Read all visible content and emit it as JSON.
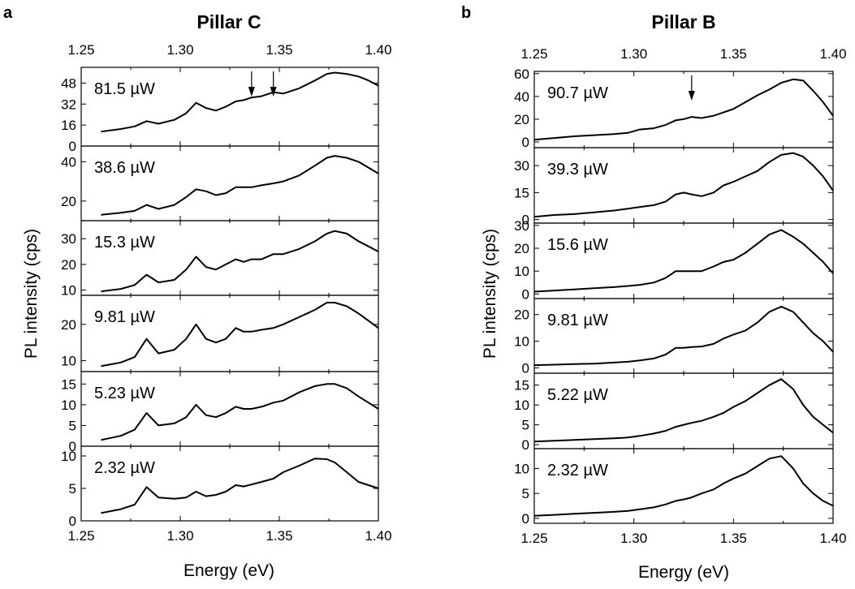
{
  "chart_data": [
    {
      "type": "line",
      "panel_label": "a",
      "title": "Pillar C",
      "xlabel": "Energy (eV)",
      "ylabel": "PL intensity (cps)",
      "xlim": [
        1.25,
        1.4
      ],
      "x_ticks": [
        "1.25",
        "1.30",
        "1.35",
        "1.40"
      ],
      "arrows_at_energy": [
        1.336,
        1.347
      ],
      "subplots": [
        {
          "label": "81.5 µW",
          "ylim": [
            0,
            60
          ],
          "y_ticks": [
            0,
            16,
            32,
            48
          ],
          "x": [
            1.26,
            1.27,
            1.277,
            1.283,
            1.289,
            1.297,
            1.303,
            1.308,
            1.313,
            1.318,
            1.323,
            1.328,
            1.332,
            1.336,
            1.341,
            1.347,
            1.352,
            1.36,
            1.368,
            1.374,
            1.378,
            1.384,
            1.39,
            1.395,
            1.4
          ],
          "y": [
            11,
            13,
            15,
            19,
            17,
            20,
            25,
            33,
            29,
            27,
            30,
            34,
            35,
            37,
            38,
            41,
            40,
            44,
            50,
            55,
            56,
            55,
            53,
            50,
            46
          ]
        },
        {
          "label": "38.6 µW",
          "ylim": [
            10,
            48
          ],
          "y_ticks": [
            20,
            40
          ],
          "x": [
            1.26,
            1.27,
            1.277,
            1.283,
            1.289,
            1.297,
            1.303,
            1.308,
            1.313,
            1.318,
            1.323,
            1.328,
            1.332,
            1.336,
            1.341,
            1.347,
            1.352,
            1.36,
            1.368,
            1.374,
            1.378,
            1.384,
            1.39,
            1.395,
            1.4
          ],
          "y": [
            13,
            14,
            15,
            18,
            16,
            18,
            22,
            26,
            25,
            23,
            24,
            27,
            27,
            27,
            28,
            29,
            30,
            33,
            38,
            42,
            43,
            42,
            40,
            37,
            34
          ]
        },
        {
          "label": "15.3 µW",
          "ylim": [
            8,
            37
          ],
          "y_ticks": [
            10,
            20,
            30
          ],
          "x": [
            1.26,
            1.27,
            1.277,
            1.283,
            1.289,
            1.297,
            1.303,
            1.308,
            1.313,
            1.318,
            1.323,
            1.328,
            1.332,
            1.336,
            1.341,
            1.347,
            1.352,
            1.36,
            1.368,
            1.374,
            1.378,
            1.384,
            1.39,
            1.395,
            1.4
          ],
          "y": [
            9.5,
            10.5,
            12,
            16,
            13,
            14,
            18,
            23,
            19,
            18,
            20,
            22,
            21,
            22,
            22,
            24,
            24,
            26,
            29,
            32,
            33,
            32,
            29,
            27,
            25
          ]
        },
        {
          "label": "9.81 µW",
          "ylim": [
            7,
            28
          ],
          "y_ticks": [
            10,
            20
          ],
          "x": [
            1.26,
            1.27,
            1.277,
            1.283,
            1.289,
            1.297,
            1.303,
            1.308,
            1.313,
            1.318,
            1.323,
            1.328,
            1.332,
            1.336,
            1.341,
            1.347,
            1.352,
            1.36,
            1.368,
            1.374,
            1.378,
            1.384,
            1.39,
            1.395,
            1.4
          ],
          "y": [
            8.5,
            9.5,
            11,
            16,
            12,
            13,
            16,
            20,
            16,
            15,
            16,
            19,
            18,
            18,
            18.5,
            19,
            20,
            22,
            24,
            26,
            26,
            25,
            23,
            21,
            19
          ]
        },
        {
          "label": "5.23 µW",
          "ylim": [
            0,
            18
          ],
          "y_ticks": [
            0,
            5,
            10,
            15
          ],
          "x": [
            1.26,
            1.27,
            1.277,
            1.283,
            1.289,
            1.297,
            1.303,
            1.308,
            1.313,
            1.318,
            1.323,
            1.328,
            1.332,
            1.336,
            1.341,
            1.347,
            1.352,
            1.36,
            1.368,
            1.374,
            1.378,
            1.384,
            1.39,
            1.395,
            1.4
          ],
          "y": [
            1.5,
            2.5,
            4,
            8,
            5,
            5.5,
            7,
            10,
            7.5,
            7,
            8,
            9.5,
            9,
            9,
            9.5,
            10.5,
            11,
            13,
            14.5,
            15,
            15,
            14,
            12,
            10.5,
            9
          ]
        },
        {
          "label": "2.32 µW",
          "ylim": [
            0,
            11.5
          ],
          "y_ticks": [
            0,
            5,
            10
          ],
          "x": [
            1.26,
            1.27,
            1.277,
            1.283,
            1.289,
            1.297,
            1.303,
            1.308,
            1.313,
            1.318,
            1.323,
            1.328,
            1.332,
            1.336,
            1.341,
            1.347,
            1.352,
            1.36,
            1.368,
            1.374,
            1.378,
            1.384,
            1.39,
            1.395,
            1.4
          ],
          "y": [
            1.2,
            1.8,
            2.5,
            5.2,
            3.6,
            3.4,
            3.6,
            4.5,
            3.8,
            4,
            4.5,
            5.5,
            5.3,
            5.6,
            6,
            6.5,
            7.5,
            8.5,
            9.6,
            9.5,
            9,
            7.5,
            6,
            5.5,
            5
          ]
        }
      ]
    },
    {
      "type": "line",
      "panel_label": "b",
      "title": "Pillar B",
      "xlabel": "Energy (eV)",
      "ylabel": "PL intensity (cps)",
      "xlim": [
        1.25,
        1.4
      ],
      "x_ticks": [
        "1.25",
        "1.30",
        "1.35",
        "1.40"
      ],
      "arrows_at_energy": [
        1.329
      ],
      "subplots": [
        {
          "label": "90.7 µW",
          "ylim": [
            -5,
            62
          ],
          "y_ticks": [
            0,
            20,
            40,
            60
          ],
          "x": [
            1.25,
            1.26,
            1.27,
            1.28,
            1.29,
            1.297,
            1.303,
            1.31,
            1.316,
            1.321,
            1.325,
            1.329,
            1.334,
            1.34,
            1.345,
            1.35,
            1.356,
            1.362,
            1.368,
            1.374,
            1.38,
            1.385,
            1.39,
            1.395,
            1.4
          ],
          "y": [
            2,
            3.5,
            5,
            6,
            7,
            8,
            11,
            12,
            15,
            19,
            20,
            22,
            21,
            23,
            26,
            29,
            35,
            41,
            46,
            52,
            55,
            54,
            45,
            35,
            23
          ]
        },
        {
          "label": "39.3 µW",
          "ylim": [
            -2,
            40
          ],
          "y_ticks": [
            0,
            15,
            30
          ],
          "x": [
            1.25,
            1.26,
            1.27,
            1.28,
            1.29,
            1.297,
            1.303,
            1.31,
            1.316,
            1.321,
            1.325,
            1.329,
            1.334,
            1.34,
            1.345,
            1.35,
            1.356,
            1.362,
            1.368,
            1.374,
            1.38,
            1.385,
            1.39,
            1.395,
            1.4
          ],
          "y": [
            1.5,
            2.5,
            3,
            4,
            5,
            6,
            7,
            8,
            10,
            14,
            15,
            14,
            13,
            15,
            19,
            21,
            24,
            27,
            32,
            36,
            37,
            35,
            30,
            24,
            16
          ]
        },
        {
          "label": "15.6 µW",
          "ylim": [
            -2,
            31
          ],
          "y_ticks": [
            0,
            10,
            20,
            30
          ],
          "x": [
            1.25,
            1.26,
            1.27,
            1.28,
            1.29,
            1.297,
            1.303,
            1.31,
            1.316,
            1.321,
            1.325,
            1.329,
            1.334,
            1.34,
            1.345,
            1.35,
            1.356,
            1.362,
            1.368,
            1.374,
            1.38,
            1.385,
            1.39,
            1.395,
            1.4
          ],
          "y": [
            1,
            1.5,
            2,
            2.5,
            3,
            3.5,
            4,
            5,
            7,
            10,
            10,
            10,
            10,
            12,
            14,
            15,
            18,
            22,
            26,
            28,
            25,
            22,
            18,
            14,
            9
          ]
        },
        {
          "label": "9.81 µW",
          "ylim": [
            -2,
            26
          ],
          "y_ticks": [
            0,
            10,
            20
          ],
          "x": [
            1.25,
            1.26,
            1.27,
            1.28,
            1.29,
            1.297,
            1.303,
            1.31,
            1.316,
            1.321,
            1.325,
            1.329,
            1.334,
            1.34,
            1.345,
            1.35,
            1.356,
            1.362,
            1.368,
            1.374,
            1.38,
            1.385,
            1.39,
            1.395,
            1.4
          ],
          "y": [
            1,
            1.2,
            1.4,
            1.6,
            2,
            2.3,
            2.8,
            3.5,
            5,
            7.5,
            7.5,
            7.8,
            8,
            9,
            11,
            12.5,
            14,
            17,
            21,
            23,
            21,
            17,
            13,
            10,
            6
          ]
        },
        {
          "label": "5.22 µW",
          "ylim": [
            -1,
            18
          ],
          "y_ticks": [
            0,
            5,
            10,
            15
          ],
          "x": [
            1.25,
            1.26,
            1.27,
            1.28,
            1.29,
            1.297,
            1.303,
            1.31,
            1.316,
            1.321,
            1.325,
            1.329,
            1.334,
            1.34,
            1.345,
            1.35,
            1.356,
            1.362,
            1.368,
            1.374,
            1.38,
            1.385,
            1.39,
            1.395,
            1.4
          ],
          "y": [
            0.8,
            1,
            1.2,
            1.4,
            1.6,
            1.8,
            2.2,
            2.8,
            3.5,
            4.5,
            5,
            5.5,
            6,
            7,
            8,
            9.5,
            11,
            13,
            15,
            16.5,
            14,
            10,
            7,
            5,
            3
          ]
        },
        {
          "label": "2.32 µW",
          "ylim": [
            -1,
            14
          ],
          "y_ticks": [
            0,
            5,
            10
          ],
          "x": [
            1.25,
            1.26,
            1.27,
            1.28,
            1.29,
            1.297,
            1.303,
            1.31,
            1.316,
            1.321,
            1.325,
            1.329,
            1.334,
            1.34,
            1.345,
            1.35,
            1.356,
            1.362,
            1.368,
            1.374,
            1.38,
            1.385,
            1.39,
            1.395,
            1.4
          ],
          "y": [
            0.5,
            0.7,
            0.9,
            1.1,
            1.3,
            1.5,
            1.8,
            2.2,
            2.8,
            3.5,
            3.8,
            4.2,
            5,
            5.8,
            7,
            8,
            9,
            10.5,
            12,
            12.5,
            10,
            7,
            5,
            3.5,
            2.5
          ]
        }
      ]
    }
  ]
}
